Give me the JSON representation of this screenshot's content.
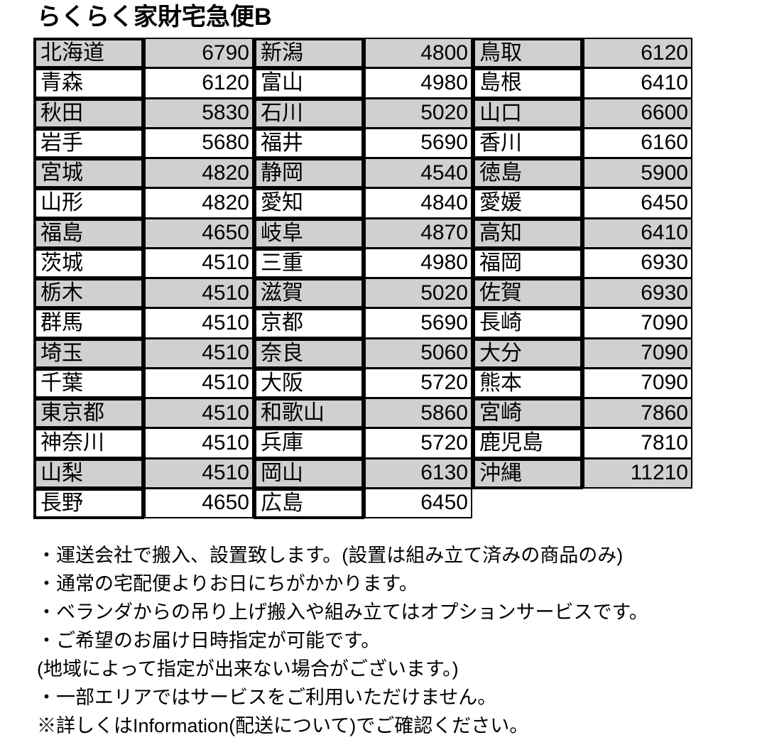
{
  "header": {
    "title": "らくらく家財宅急便B"
  },
  "table": {
    "rows": [
      [
        "北海道",
        6790,
        "新潟",
        4800,
        "鳥取",
        6120
      ],
      [
        "青森",
        6120,
        "富山",
        4980,
        "島根",
        6410
      ],
      [
        "秋田",
        5830,
        "石川",
        5020,
        "山口",
        6600
      ],
      [
        "岩手",
        5680,
        "福井",
        5690,
        "香川",
        6160
      ],
      [
        "宮城",
        4820,
        "静岡",
        4540,
        "徳島",
        5900
      ],
      [
        "山形",
        4820,
        "愛知",
        4840,
        "愛媛",
        6450
      ],
      [
        "福島",
        4650,
        "岐阜",
        4870,
        "高知",
        6410
      ],
      [
        "茨城",
        4510,
        "三重",
        4980,
        "福岡",
        6930
      ],
      [
        "栃木",
        4510,
        "滋賀",
        5020,
        "佐賀",
        6930
      ],
      [
        "群馬",
        4510,
        "京都",
        5690,
        "長崎",
        7090
      ],
      [
        "埼玉",
        4510,
        "奈良",
        5060,
        "大分",
        7090
      ],
      [
        "千葉",
        4510,
        "大阪",
        5720,
        "熊本",
        7090
      ],
      [
        "東京都",
        4510,
        "和歌山",
        5860,
        "宮崎",
        7860
      ],
      [
        "神奈川",
        4510,
        "兵庫",
        5720,
        "鹿児島",
        7810
      ],
      [
        "山梨",
        4510,
        "岡山",
        6130,
        "沖縄",
        11210
      ],
      [
        "長野",
        4650,
        "広島",
        6450
      ]
    ]
  },
  "notes": [
    "・運送会社で搬入、設置致します。(設置は組み立て済みの商品のみ)",
    "・通常の宅配便よりお日にちがかかります。",
    "・ベランダからの吊り上げ搬入や組み立てはオプションサービスです。",
    "・ご希望のお届け日時指定が可能です。",
    "(地域によって指定が出来ない場合がございます。)",
    "・一部エリアではサービスをご利用いただけません。",
    "※詳しくはInformation(配送について)でご確認ください。"
  ]
}
